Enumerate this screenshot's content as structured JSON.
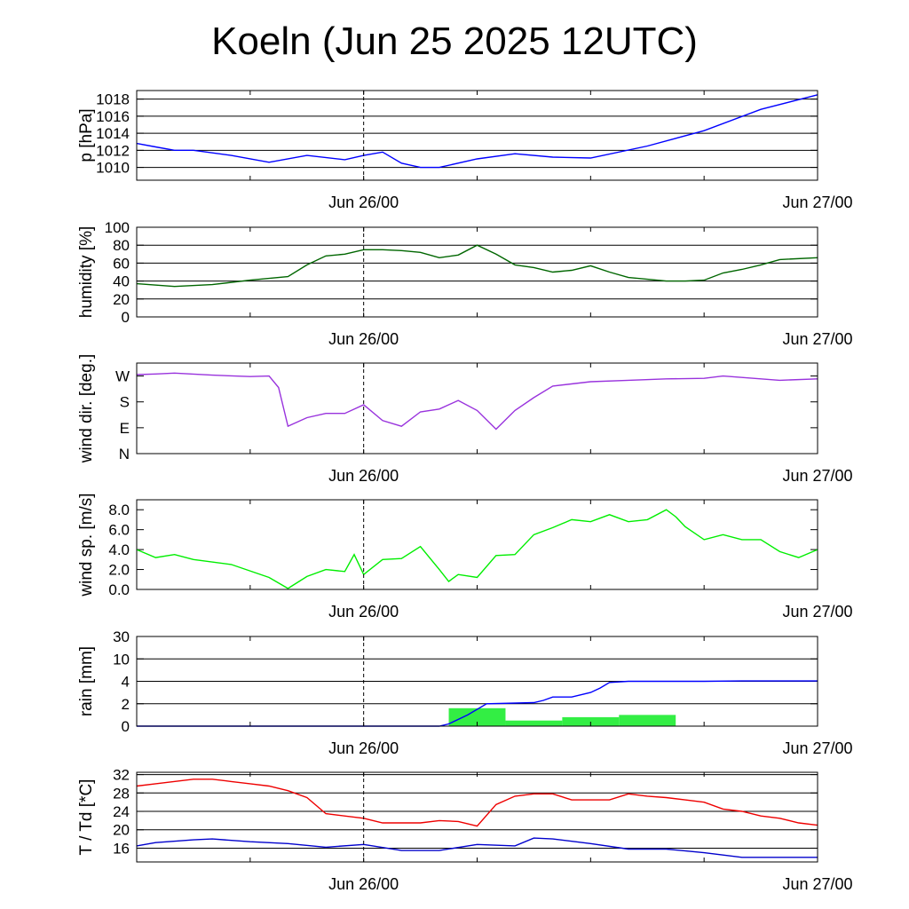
{
  "title": "Koeln (Jun 25 2025 12UTC)",
  "x_axis": {
    "start": "2025-06-25T12:00Z",
    "end": "2025-06-27T00:00Z",
    "ticks": [
      {
        "label": "Jun 26/00",
        "time": "2025-06-26T00:00Z"
      },
      {
        "label": "Jun 27/00",
        "time": "2025-06-27T00:00Z"
      }
    ],
    "marker_time": "2025-06-26T00:00Z"
  },
  "chart_data": [
    {
      "type": "line",
      "ylabel": "p [hPa]",
      "ylim": [
        1008.5,
        1019
      ],
      "yticks": [
        1010,
        1012,
        1014,
        1016,
        1018
      ],
      "ytick_labels": [
        "1010",
        "1012",
        "1014",
        "1016",
        "1018"
      ],
      "grid": true,
      "series": [
        {
          "color": "#0000ff",
          "x": [
            0,
            1,
            2,
            3,
            5,
            7,
            9,
            11,
            12,
            13,
            14,
            15,
            16,
            18,
            20,
            22,
            24,
            27,
            30,
            33,
            36
          ],
          "y": [
            1012.8,
            1012.4,
            1012.0,
            1012.0,
            1011.4,
            1010.6,
            1011.4,
            1010.9,
            1011.4,
            1011.8,
            1010.5,
            1010.0,
            1010.0,
            1011.0,
            1011.6,
            1011.2,
            1011.1,
            1012.5,
            1014.3,
            1016.8,
            1018.5
          ]
        }
      ]
    },
    {
      "type": "line",
      "ylabel": "humidity [%]",
      "ylim": [
        0,
        100
      ],
      "yticks": [
        0,
        20,
        40,
        60,
        80,
        100
      ],
      "ytick_labels": [
        "0",
        "20",
        "40",
        "60",
        "80",
        "100"
      ],
      "grid": true,
      "series": [
        {
          "color": "#006600",
          "x": [
            0,
            2,
            4,
            6,
            8,
            9,
            10,
            11,
            12,
            13,
            14,
            15,
            16,
            17,
            18,
            19,
            20,
            21,
            22,
            23,
            24,
            25,
            26,
            27,
            28,
            29,
            30,
            31,
            32,
            33,
            34,
            36
          ],
          "y": [
            37,
            34,
            36,
            41,
            45,
            58,
            68,
            70,
            75,
            75,
            74,
            72,
            66,
            69,
            80,
            70,
            58,
            55,
            50,
            52,
            57,
            50,
            44,
            42,
            40,
            40,
            41,
            49,
            53,
            58,
            64,
            66
          ]
        }
      ]
    },
    {
      "type": "line",
      "ylabel": "wind dir. [deg.]",
      "ylim": [
        0,
        315
      ],
      "yticks": [
        0,
        90,
        180,
        270
      ],
      "ytick_labels": [
        "N",
        "E",
        "S",
        "W"
      ],
      "grid": false,
      "series": [
        {
          "color": "#9933dd",
          "x": [
            0,
            1,
            2,
            4,
            6,
            7,
            7.5,
            8,
            9,
            10,
            11,
            12,
            13,
            14,
            15,
            16,
            17,
            18,
            19,
            20,
            21,
            22,
            24,
            26,
            28,
            30,
            31,
            32,
            34,
            36
          ],
          "y": [
            275,
            277,
            280,
            273,
            268,
            270,
            230,
            95,
            125,
            140,
            140,
            170,
            115,
            95,
            145,
            155,
            185,
            150,
            85,
            150,
            195,
            235,
            250,
            255,
            260,
            262,
            270,
            265,
            255,
            260
          ]
        }
      ]
    },
    {
      "type": "line",
      "ylabel": "wind sp. [m/s]",
      "ylim": [
        0,
        9
      ],
      "yticks": [
        0,
        2,
        4,
        6,
        8
      ],
      "ytick_labels": [
        "0.0",
        "2.0",
        "4.0",
        "6.0",
        "8.0"
      ],
      "grid": false,
      "series": [
        {
          "color": "#00ee00",
          "x": [
            0,
            1,
            2,
            3,
            5,
            7,
            8,
            9,
            10,
            11,
            11.5,
            12,
            13,
            14,
            15,
            16,
            16.5,
            17,
            18,
            19,
            20,
            21,
            22,
            23,
            24,
            25,
            26,
            27,
            28,
            28.5,
            29,
            30,
            31,
            32,
            33,
            34,
            35,
            36
          ],
          "y": [
            4.0,
            3.2,
            3.5,
            3.0,
            2.5,
            1.2,
            0.1,
            1.3,
            2.0,
            1.8,
            3.5,
            1.5,
            3.0,
            3.1,
            4.3,
            2.0,
            0.8,
            1.5,
            1.2,
            3.4,
            3.5,
            5.5,
            6.2,
            7.0,
            6.8,
            7.5,
            6.8,
            7.0,
            8.0,
            7.3,
            6.3,
            5.0,
            5.5,
            5.0,
            5.0,
            3.8,
            3.2,
            4.0
          ]
        }
      ]
    },
    {
      "type": "bar",
      "ylabel": "rain [mm]",
      "ylim": [
        0,
        30
      ],
      "yticks": [
        0,
        2,
        4,
        10,
        30
      ],
      "ytick_labels": [
        "0",
        "2",
        "4",
        "10",
        "30"
      ],
      "scale": "nonlinear",
      "grid": true,
      "bars": {
        "color": "#33ee44",
        "x_start": [
          16.5,
          19.5,
          22.5,
          25.5
        ],
        "x_end": [
          19.5,
          22.5,
          25.5,
          28.5
        ],
        "values": [
          1.6,
          0.5,
          0.8,
          1.0
        ]
      },
      "series": [
        {
          "color": "#0000ff",
          "name": "",
          "x": [
            0,
            16,
            16.5,
            17.5,
            18.5,
            21,
            21.5,
            22,
            23,
            24,
            24.5,
            25,
            26,
            28,
            30,
            32,
            34,
            36
          ],
          "y": [
            0,
            0,
            0.2,
            1.0,
            2.0,
            2.1,
            2.3,
            2.6,
            2.6,
            3.0,
            3.4,
            3.9,
            4.0,
            4.0,
            4.0,
            4.1,
            4.1,
            4.1
          ]
        }
      ]
    },
    {
      "type": "line",
      "ylabel": "T / Td [*C]",
      "ylim": [
        13,
        32.5
      ],
      "yticks": [
        16,
        20,
        24,
        28,
        32
      ],
      "ytick_labels": [
        "16",
        "20",
        "24",
        "28",
        "32"
      ],
      "grid": true,
      "series": [
        {
          "color": "#ee0000",
          "x": [
            0,
            1,
            3,
            4,
            5,
            6,
            7,
            8,
            9,
            10,
            12,
            13,
            14,
            15,
            16,
            17,
            18,
            19,
            20,
            21,
            22,
            23,
            24,
            25,
            26,
            27,
            28,
            29,
            30,
            31,
            32,
            33,
            34,
            35,
            36
          ],
          "y": [
            29.5,
            30.0,
            31.0,
            31.0,
            30.5,
            30.0,
            29.5,
            28.5,
            27.0,
            23.5,
            22.5,
            21.5,
            21.5,
            21.5,
            22.0,
            21.8,
            20.8,
            25.5,
            27.3,
            27.8,
            27.8,
            26.5,
            26.5,
            26.5,
            27.8,
            27.3,
            27.0,
            26.5,
            26.0,
            24.5,
            24.0,
            23.0,
            22.5,
            21.5,
            21.0
          ]
        },
        {
          "color": "#0000cc",
          "x": [
            0,
            1,
            3,
            4,
            6,
            8,
            10,
            12,
            14,
            16,
            18,
            20,
            21,
            22,
            24,
            26,
            28,
            30,
            32,
            34,
            36
          ],
          "y": [
            16.5,
            17.2,
            17.8,
            18.0,
            17.4,
            17.0,
            16.2,
            16.8,
            15.5,
            15.5,
            16.8,
            16.5,
            18.2,
            18.0,
            17.0,
            15.8,
            15.8,
            15.0,
            14.0,
            14.0,
            14.0
          ]
        }
      ]
    }
  ]
}
